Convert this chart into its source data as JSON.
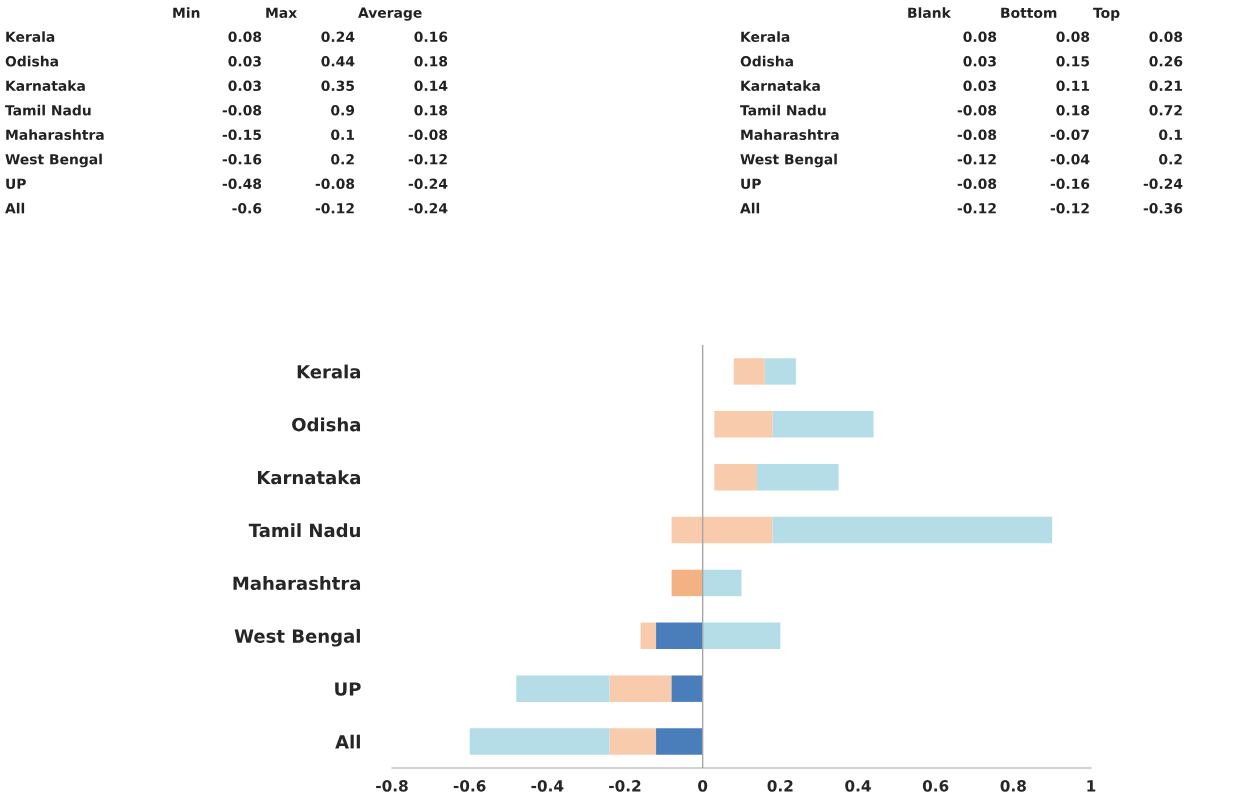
{
  "chart_data": [
    {
      "type": "other",
      "categories": [
        "Min",
        "Max",
        "Average"
      ],
      "y_categories": [
        "Kerala",
        "Odisha",
        "Karnataka",
        "Tamil Nadu",
        "Maharashtra",
        "West Bengal",
        "UP",
        "All"
      ],
      "annotations": [
        "0.08",
        "0.24",
        "0.16",
        "0.03",
        "0.44",
        "0.18",
        "0.03",
        "0.35",
        "0.14",
        "-0.08",
        "0.9",
        "0.18",
        "-0.15",
        "0.1",
        "-0.08",
        "-0.16",
        "0.2",
        "-0.12",
        "-0.48",
        "-0.08",
        "-0.24",
        "-0.6",
        "-0.12",
        "-0.24"
      ]
    },
    {
      "type": "other",
      "categories": [
        "Blank",
        "Bottom",
        "Top"
      ],
      "y_categories": [
        "Kerala",
        "Odisha",
        "Karnataka",
        "Tamil Nadu",
        "Maharashtra",
        "West Bengal",
        "UP",
        "All"
      ],
      "annotations": [
        "0.08",
        "0.08",
        "0.08",
        "0.03",
        "0.15",
        "0.26",
        "0.03",
        "0.11",
        "0.21",
        "-0.08",
        "0.18",
        "0.72",
        "-0.08",
        "-0.07",
        "0.1",
        "-0.12",
        "-0.04",
        "0.2",
        "-0.08",
        "-0.16",
        "-0.24",
        "-0.12",
        "-0.12",
        "-0.36"
      ]
    },
    {
      "type": "bar",
      "orientation": "horizontal",
      "categories": [
        "Kerala",
        "Odisha",
        "Karnataka",
        "Tamil Nadu",
        "Maharashtra",
        "West Bengal",
        "UP",
        "All"
      ],
      "series": [
        {
          "colors": [
            "#f8cbad",
            "#f8cbad",
            "#f8cbad",
            "#f8cbad",
            "#f4b183",
            "#f8cbad",
            "#f8cbad",
            "#f8cbad"
          ],
          "base": [
            0.08,
            0.03,
            0.03,
            -0.08,
            -0.08,
            -0.16,
            -0.24,
            -0.24
          ],
          "values": [
            0.08,
            0.15,
            0.11,
            0.26,
            0.08,
            0.04,
            0.16,
            0.12
          ]
        },
        {
          "color": "#b4dde8",
          "base": [
            0.16,
            0.18,
            0.14,
            0.18,
            0,
            0,
            -0.48,
            -0.6
          ],
          "values": [
            0.08,
            0.26,
            0.21,
            0.72,
            0.1,
            0.2,
            0.24,
            0.36
          ]
        },
        {
          "color": "#4a7ebb",
          "base": [
            null,
            null,
            null,
            null,
            null,
            -0.12,
            -0.08,
            -0.12
          ],
          "values": [
            null,
            null,
            null,
            null,
            null,
            0.12,
            0.08,
            0.12
          ]
        }
      ],
      "xlim": [
        -0.8,
        1.0
      ],
      "xticks": [
        -0.8,
        -0.6,
        -0.4,
        -0.2,
        0,
        0.2,
        0.4,
        0.6,
        0.8,
        1
      ],
      "ref_lines": [
        {
          "axis": "x",
          "value": 0,
          "color": "#a6a6a6"
        }
      ]
    }
  ]
}
